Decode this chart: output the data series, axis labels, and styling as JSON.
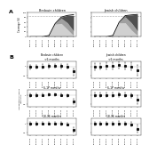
{
  "years_labels": [
    "2004-05",
    "2005-06",
    "2006-07",
    "2007-08",
    "2008-09",
    "2009-10",
    "2010-11",
    "2011-12"
  ],
  "years_x": [
    0,
    1,
    2,
    3,
    4,
    5,
    6,
    7
  ],
  "panel_a_title_bedouin": "Bedouin children",
  "panel_a_title_jewish": "Jewish children",
  "panel_b_title_bedouin": "Bedouin children",
  "panel_b_title_jewish": "Jewish children",
  "pcv7_color": "#d0d0d0",
  "pcv13_color": "#505050",
  "mixed_color": "#a0a0a0",
  "overall_color": "#000000",
  "dotted_line_val": 0.85,
  "uptake_bedouin_overall": [
    0.0,
    0.0,
    0.0,
    0.05,
    0.55,
    0.82,
    0.89,
    0.92
  ],
  "uptake_bedouin_pcv7": [
    0.0,
    0.0,
    0.0,
    0.05,
    0.52,
    0.55,
    0.3,
    0.04
  ],
  "uptake_bedouin_mixed": [
    0.0,
    0.0,
    0.0,
    0.0,
    0.03,
    0.22,
    0.28,
    0.2
  ],
  "uptake_bedouin_pcv13": [
    0.0,
    0.0,
    0.0,
    0.0,
    0.0,
    0.05,
    0.31,
    0.65
  ],
  "uptake_jewish_overall": [
    0.0,
    0.0,
    0.0,
    0.05,
    0.6,
    0.88,
    0.91,
    0.93
  ],
  "uptake_jewish_pcv7": [
    0.0,
    0.0,
    0.0,
    0.05,
    0.57,
    0.58,
    0.28,
    0.04
  ],
  "uptake_jewish_mixed": [
    0.0,
    0.0,
    0.0,
    0.0,
    0.03,
    0.25,
    0.3,
    0.2
  ],
  "uptake_jewish_pcv13": [
    0.0,
    0.0,
    0.0,
    0.0,
    0.0,
    0.05,
    0.33,
    0.69
  ],
  "age_groups": [
    "<6 months",
    "6-17 months",
    "18-36 months"
  ],
  "irr_bedouin": {
    "<6 months": [
      1.0,
      1.05,
      1.1,
      1.15,
      1.2,
      1.15,
      1.1,
      0.3
    ],
    "6-17 months": [
      1.0,
      1.05,
      1.1,
      1.15,
      1.15,
      1.1,
      0.9,
      0.2
    ],
    "18-36 months": [
      1.0,
      1.0,
      1.05,
      1.05,
      1.05,
      1.0,
      0.85,
      0.2
    ]
  },
  "irr_jewish": {
    "<6 months": [
      1.0,
      1.1,
      1.2,
      1.35,
      1.5,
      1.3,
      1.1,
      0.4
    ],
    "6-17 months": [
      1.0,
      1.0,
      1.1,
      1.1,
      1.2,
      1.1,
      0.9,
      0.3
    ],
    "18-36 months": [
      1.0,
      1.0,
      1.0,
      1.05,
      1.1,
      1.0,
      0.85,
      0.25
    ]
  },
  "ci_lo_bedouin": {
    "<6 months": [
      0.55,
      0.6,
      0.65,
      0.7,
      0.75,
      0.7,
      0.65,
      0.1
    ],
    "6-17 months": [
      0.65,
      0.7,
      0.75,
      0.8,
      0.8,
      0.75,
      0.6,
      0.1
    ],
    "18-36 months": [
      0.7,
      0.7,
      0.75,
      0.75,
      0.75,
      0.7,
      0.6,
      0.1
    ]
  },
  "ci_hi_bedouin": {
    "<6 months": [
      1.7,
      1.7,
      1.75,
      1.8,
      1.85,
      1.8,
      1.75,
      0.7
    ],
    "6-17 months": [
      1.5,
      1.55,
      1.6,
      1.65,
      1.65,
      1.6,
      1.4,
      0.45
    ],
    "18-36 months": [
      1.45,
      1.45,
      1.5,
      1.5,
      1.5,
      1.45,
      1.3,
      0.45
    ]
  },
  "ci_lo_jewish": {
    "<6 months": [
      0.4,
      0.45,
      0.5,
      0.55,
      0.6,
      0.5,
      0.4,
      0.1
    ],
    "6-17 months": [
      0.6,
      0.6,
      0.65,
      0.65,
      0.7,
      0.65,
      0.5,
      0.1
    ],
    "18-36 months": [
      0.65,
      0.65,
      0.65,
      0.68,
      0.7,
      0.65,
      0.55,
      0.1
    ]
  },
  "ci_hi_jewish": {
    "<6 months": [
      2.5,
      2.6,
      2.8,
      3.2,
      3.8,
      3.2,
      2.8,
      1.5
    ],
    "6-17 months": [
      1.8,
      1.8,
      2.0,
      2.0,
      2.2,
      2.0,
      1.7,
      1.0
    ],
    "18-36 months": [
      1.6,
      1.6,
      1.65,
      1.7,
      1.8,
      1.65,
      1.5,
      0.8
    ]
  },
  "ylim_a": [
    0,
    1.0
  ],
  "ylim_b_bedouin": [
    0.05,
    4.0
  ],
  "ylim_b_jewish": [
    0.05,
    4.0
  ],
  "ref_line": 1.0,
  "bg_color": "#ffffff",
  "label_a": "A",
  "label_b": "B",
  "ylabel_a": "Coverage (%)",
  "ylabel_b": "Unadjusted incidence\nrate ratio",
  "yticks_a": [
    0.0,
    0.2,
    0.4,
    0.6,
    0.8,
    1.0
  ],
  "ytick_labels_a": [
    "0",
    "20",
    "40",
    "60",
    "80",
    "100"
  ],
  "point_color": "#111111",
  "point_size": 1.2,
  "lw_overall": 0.6
}
